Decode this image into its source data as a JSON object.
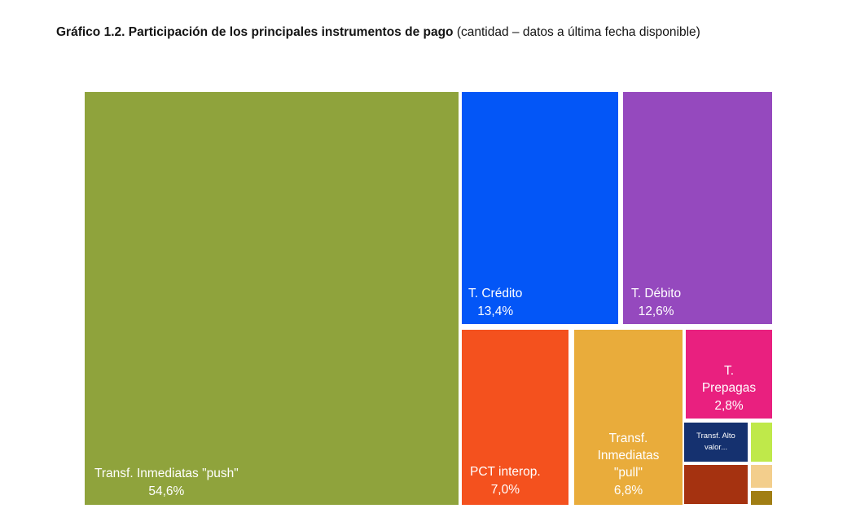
{
  "title": {
    "bold": "Gráfico 1.2. Participación de los principales instrumentos de pago",
    "normal": " (cantidad – datos a última fecha disponible)"
  },
  "chart_data": {
    "type": "treemap",
    "title": "Gráfico 1.2. Participación de los principales instrumentos de pago (cantidad – datos a última fecha disponible)",
    "value_unit": "%",
    "legend_position": "none",
    "items": [
      {
        "label": "Transf. Inmediatas \"push\"",
        "value": 54.6,
        "value_label": "54,6%",
        "color": "#8FA33C"
      },
      {
        "label": "T. Crédito",
        "value": 13.4,
        "value_label": "13,4%",
        "color": "#0356F7"
      },
      {
        "label": "T. Débito",
        "value": 12.6,
        "value_label": "12,6%",
        "color": "#9549BE"
      },
      {
        "label": "PCT interop.",
        "value": 7.0,
        "value_label": "7,0%",
        "color": "#F4511E"
      },
      {
        "label": "Transf. Inmediatas \"pull\"",
        "value": 6.8,
        "value_label": "6,8%",
        "color": "#E9AC3B"
      },
      {
        "label": "T. Prepagas",
        "value": 2.8,
        "value_label": "2,8%",
        "color": "#E9207F"
      },
      {
        "label": "Transf. Alto valor...",
        "value": null,
        "value_label": "",
        "color": "#15316F"
      },
      {
        "label": "",
        "value": null,
        "value_label": "",
        "color": "#BFE94A"
      },
      {
        "label": "",
        "value": null,
        "value_label": "",
        "color": "#A53210"
      },
      {
        "label": "",
        "value": null,
        "value_label": "",
        "color": "#F3CE8C"
      },
      {
        "label": "",
        "value": null,
        "value_label": "",
        "color": "#A17E14"
      }
    ]
  },
  "tile_labels": {
    "push": {
      "l1": "Transf. Inmediatas \"push\"",
      "pct": "54,6%"
    },
    "credito": {
      "l1": "T. Crédito",
      "pct": "13,4%"
    },
    "debito": {
      "l1": "T. Débito",
      "pct": "12,6%"
    },
    "pct": {
      "l1": "PCT interop.",
      "pct": "7,0%"
    },
    "pull": {
      "l1": "Transf.",
      "l2": "Inmediatas",
      "l3": "\"pull\"",
      "pct": "6,8%"
    },
    "prepagas": {
      "l1": "T.",
      "l2": "Prepagas",
      "pct": "2,8%"
    },
    "altovalor": {
      "l1": "Transf. Alto",
      "l2": "valor..."
    }
  }
}
